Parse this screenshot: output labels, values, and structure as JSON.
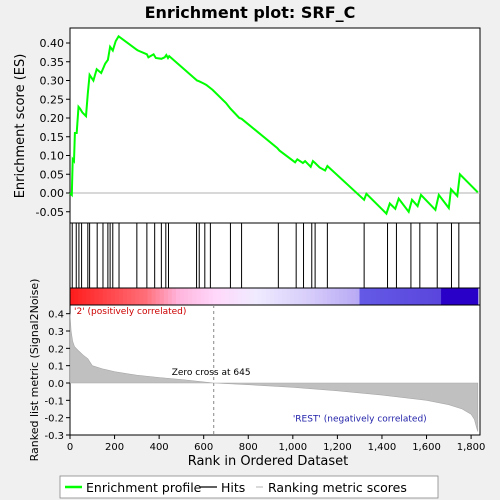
{
  "chart_data": {
    "type": "line",
    "title": "Enrichment plot: SRF_C",
    "es_panel": {
      "ylabel": "Enrichment score (ES)",
      "ylim": [
        -0.08,
        0.44
      ],
      "yticks": [
        -0.05,
        0.0,
        0.05,
        0.1,
        0.15,
        0.2,
        0.25,
        0.3,
        0.35,
        0.4
      ],
      "ytick_labels": [
        "-0.05",
        "0.00",
        "0.05",
        "0.10",
        "0.15",
        "0.20",
        "0.25",
        "0.30",
        "0.35",
        "0.40"
      ],
      "x": [
        0,
        8,
        12,
        18,
        22,
        30,
        38,
        45,
        55,
        72,
        80,
        88,
        105,
        120,
        140,
        158,
        170,
        180,
        192,
        205,
        218,
        300,
        305,
        345,
        352,
        375,
        385,
        410,
        425,
        432,
        440,
        445,
        570,
        580,
        600,
        612,
        640,
        700,
        720,
        760,
        770,
        930,
        940,
        1010,
        1020,
        1045,
        1055,
        1080,
        1090,
        1100,
        1120,
        1145,
        1155,
        1320,
        1330,
        1420,
        1435,
        1460,
        1475,
        1520,
        1535,
        1560,
        1575,
        1640,
        1655,
        1700,
        1710,
        1738,
        1750,
        1830
      ],
      "y": [
        0.0,
        -0.005,
        0.09,
        0.085,
        0.16,
        0.16,
        0.23,
        0.225,
        0.215,
        0.205,
        0.265,
        0.315,
        0.3,
        0.33,
        0.32,
        0.345,
        0.355,
        0.39,
        0.38,
        0.405,
        0.418,
        0.382,
        0.38,
        0.37,
        0.362,
        0.37,
        0.36,
        0.358,
        0.362,
        0.368,
        0.36,
        0.365,
        0.3,
        0.298,
        0.292,
        0.288,
        0.275,
        0.24,
        0.225,
        0.2,
        0.198,
        0.12,
        0.113,
        0.082,
        0.09,
        0.08,
        0.085,
        0.07,
        0.085,
        0.08,
        0.068,
        0.06,
        0.072,
        -0.018,
        -0.002,
        -0.055,
        -0.028,
        -0.042,
        -0.015,
        -0.05,
        -0.018,
        -0.035,
        -0.005,
        -0.045,
        -0.005,
        -0.04,
        0.01,
        -0.008,
        0.05,
        0.002
      ]
    },
    "hits": [
      10,
      28,
      40,
      52,
      80,
      88,
      122,
      148,
      170,
      180,
      192,
      220,
      300,
      345,
      380,
      410,
      430,
      442,
      568,
      580,
      605,
      630,
      720,
      770,
      935,
      1015,
      1048,
      1085,
      1100,
      1155,
      1320,
      1425,
      1465,
      1530,
      1570,
      1648,
      1712,
      1745
    ],
    "x_axis": {
      "xlabel": "Rank in Ordered Dataset",
      "xlim": [
        0,
        1840
      ],
      "xticks": [
        0,
        200,
        400,
        600,
        800,
        1000,
        1200,
        1400,
        1600,
        1800
      ],
      "xtick_labels": [
        "0",
        "200",
        "400",
        "600",
        "800",
        "1,000",
        "1,200",
        "1,400",
        "1,600",
        "1,800"
      ]
    },
    "metric_panel": {
      "ylabel": "Ranked list metric (Signal2Noise)",
      "ylim": [
        -0.3,
        0.45
      ],
      "yticks": [
        -0.3,
        -0.2,
        -0.1,
        0.0,
        0.1,
        0.2,
        0.3,
        0.4
      ],
      "ytick_labels": [
        "-0.3",
        "-0.2",
        "-0.1",
        "0.0",
        "0.1",
        "0.2",
        "0.3",
        "0.4"
      ],
      "x": [
        0,
        5,
        12,
        20,
        35,
        60,
        80,
        100,
        150,
        200,
        300,
        400,
        500,
        645,
        800,
        1000,
        1200,
        1400,
        1600,
        1700,
        1760,
        1800,
        1815,
        1825,
        1830
      ],
      "y": [
        0.4,
        0.3,
        0.24,
        0.21,
        0.19,
        0.16,
        0.14,
        0.1,
        0.08,
        0.065,
        0.045,
        0.032,
        0.02,
        0.0,
        -0.01,
        -0.025,
        -0.045,
        -0.07,
        -0.1,
        -0.125,
        -0.15,
        -0.18,
        -0.21,
        -0.26,
        -0.28
      ],
      "zero_cross_label": "Zero cross at 645",
      "zero_cross_at": 645,
      "pos_label": "'2' (positively correlated)",
      "neg_label": "'REST' (negatively correlated)"
    },
    "legend": {
      "placement": "bottom",
      "items": [
        {
          "label": "Enrichment profile",
          "color": "#00ff00"
        },
        {
          "label": "Hits",
          "color": "#000000"
        },
        {
          "label": "Ranking metric scores",
          "color": "#c0c0c0"
        }
      ]
    },
    "colors": {
      "es_line": "#00ff00",
      "metric_fill": "#c0c0c0",
      "pos_text": "#cc0000",
      "neg_text": "#2222aa"
    }
  }
}
